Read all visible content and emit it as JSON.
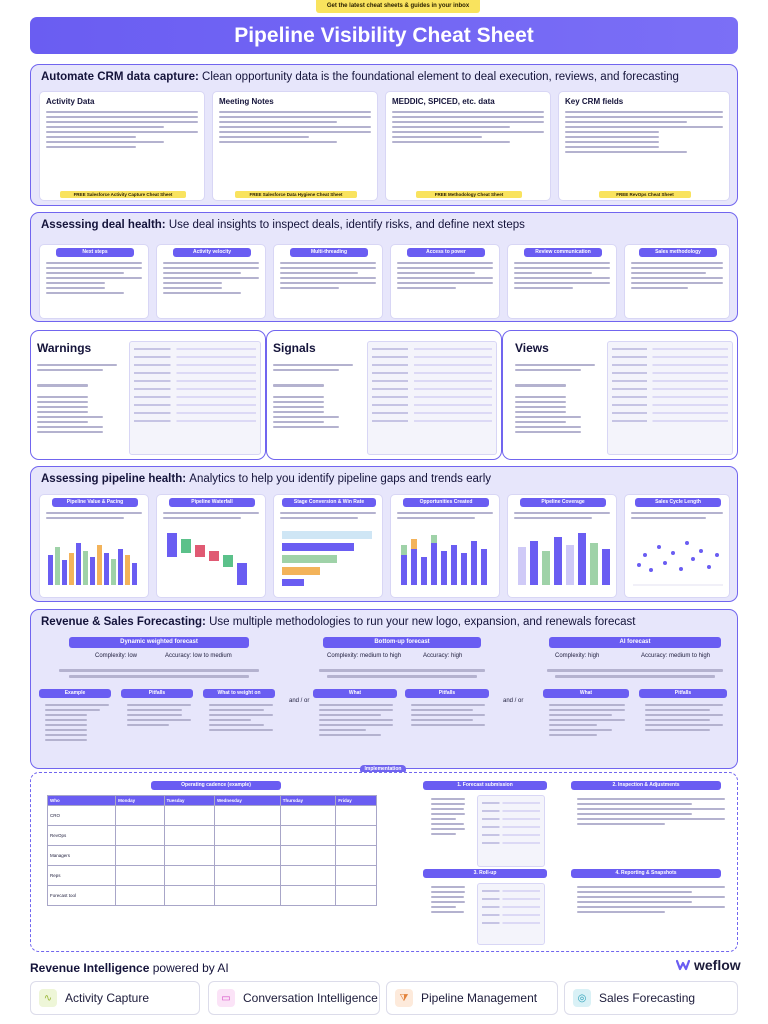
{
  "banner": {
    "text": "Get the latest cheat sheets & guides in your inbox"
  },
  "title": "Pipeline Visibility Cheat Sheet",
  "sections": {
    "crm": {
      "head": "Automate CRM data capture:",
      "sub": "Clean opportunity data is the foundational element to deal execution, reviews, and forecasting",
      "cards": [
        {
          "title": "Activity Data",
          "cta": "FREE Salesforce Activity Capture Cheat Sheet"
        },
        {
          "title": "Meeting Notes",
          "cta": "FREE Salesforce Data Hygiene Cheat Sheet"
        },
        {
          "title": "MEDDIC, SPICED, etc. data",
          "cta": "FREE Methodology Cheat Sheet"
        },
        {
          "title": "Key CRM fields",
          "cta": "FREE RevOps Cheat Sheet"
        }
      ]
    },
    "health": {
      "head": "Assessing deal health:",
      "sub": "Use deal insights to inspect deals, identify risks, and define next steps",
      "pills": [
        "Next steps",
        "Activity velocity",
        "Multi-threading",
        "Access to power",
        "Review communication",
        "Sales methodology"
      ]
    },
    "wsv": {
      "warnings": "Warnings",
      "signals": "Signals",
      "views": "Views"
    },
    "analytics": {
      "head": "Assessing pipeline health:",
      "sub": "Analytics to help you identify pipeline gaps and trends early",
      "pills": [
        "Pipeline Value & Pacing",
        "Pipeline Waterfall",
        "Stage Conversion & Win Rate",
        "Opportunities Created",
        "Pipeline Coverage",
        "Sales Cycle Length"
      ]
    },
    "forecast": {
      "head": "Revenue & Sales Forecasting:",
      "sub": "Use multiple methodologies to run your new logo, expansion, and renewals forecast",
      "columns": [
        {
          "title": "Dynamic weighted forecast",
          "complexity": "Complexity: low",
          "accuracy": "Accuracy: low to medium",
          "sub_left": "Example",
          "sub_mid": "Pitfalls",
          "sub_right": "What to weight on"
        },
        {
          "title": "Bottom-up forecast",
          "complexity": "Complexity: medium to high",
          "accuracy": "Accuracy: high",
          "sub_left": "What",
          "sub_right": "Pitfalls"
        },
        {
          "title": "AI forecast",
          "complexity": "Complexity: high",
          "accuracy": "Accuracy: medium to high",
          "sub_left": "What",
          "sub_right": "Pitfalls"
        }
      ],
      "and_or": "and / or"
    },
    "impl": {
      "pill": "Implementation",
      "cadence": "Operating cadence (example)",
      "days": [
        "Who",
        "Monday",
        "Tuesday",
        "Wednesday",
        "Thursday",
        "Friday"
      ],
      "rows": [
        "CRO",
        "RevOps",
        "Managers",
        "Reps",
        "Forecast tool"
      ],
      "steps": [
        "1. Forecast submission",
        "2. Inspection & Adjustments",
        "3. Roll-up",
        "4. Reporting & Snapshots"
      ]
    }
  },
  "footer": {
    "head": "Revenue Intelligence",
    "sub": "powered by AI",
    "logo": "weflow",
    "items": [
      {
        "label": "Activity Capture",
        "icon": "pulse-icon",
        "color": "#9bb83a"
      },
      {
        "label": "Conversation Intelligence",
        "icon": "video-icon",
        "color": "#d64fc7"
      },
      {
        "label": "Pipeline Management",
        "icon": "funnel-icon",
        "color": "#e3823a"
      },
      {
        "label": "Sales Forecasting",
        "icon": "target-icon",
        "color": "#2aa0b8"
      }
    ]
  }
}
